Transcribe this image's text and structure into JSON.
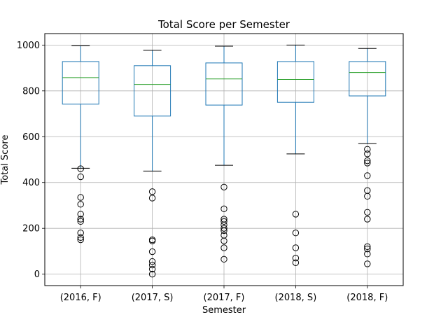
{
  "chart_data": {
    "type": "box",
    "title": "Total Score per Semester",
    "xlabel": "Semester",
    "ylabel": "Total Score",
    "ylim": [
      -50,
      1050
    ],
    "yticks": [
      0,
      200,
      400,
      600,
      800,
      1000
    ],
    "grid": true,
    "colors": {
      "box": "#1f77b4",
      "median": "#2ca02c",
      "whisker_cap": "#000000",
      "flier": "#000000",
      "grid": "#b0b0b0"
    },
    "categories": [
      "(2016, F)",
      "(2017, S)",
      "(2017, F)",
      "(2018, S)",
      "(2018, F)"
    ],
    "boxes": [
      {
        "whislo": 462,
        "q1": 742,
        "med": 858,
        "q3": 928,
        "whishi": 997,
        "fliers": [
          460,
          425,
          335,
          305,
          262,
          240,
          230,
          180,
          160,
          150
        ]
      },
      {
        "whislo": 450,
        "q1": 690,
        "med": 828,
        "q3": 910,
        "whishi": 977,
        "fliers": [
          360,
          332,
          150,
          145,
          98,
          55,
          40,
          22,
          0
        ]
      },
      {
        "whislo": 475,
        "q1": 738,
        "med": 852,
        "q3": 922,
        "whishi": 995,
        "fliers": [
          380,
          285,
          240,
          230,
          215,
          200,
          190,
          170,
          145,
          115,
          65
        ]
      },
      {
        "whislo": 525,
        "q1": 750,
        "med": 850,
        "q3": 928,
        "whishi": 1000,
        "fliers": [
          262,
          180,
          115,
          70,
          50
        ]
      },
      {
        "whislo": 570,
        "q1": 778,
        "med": 880,
        "q3": 928,
        "whishi": 985,
        "fliers": [
          545,
          525,
          495,
          485,
          430,
          365,
          340,
          270,
          240,
          120,
          110,
          88,
          45
        ]
      }
    ]
  }
}
